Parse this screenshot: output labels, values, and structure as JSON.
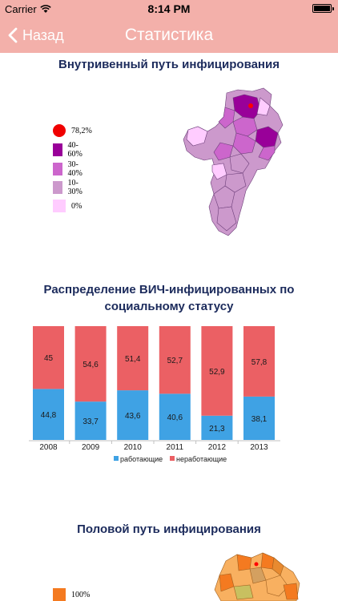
{
  "status_bar": {
    "carrier": "Carrier",
    "time": "8:14 PM"
  },
  "nav": {
    "back_label": "Назад",
    "title": "Статистика"
  },
  "section1": {
    "title": "Внутривенный путь инфицирования",
    "legend": [
      {
        "label": "78,2%",
        "color": "#f00000",
        "shape": "circle"
      },
      {
        "label": "40-60%",
        "color": "#990099",
        "shape": "square"
      },
      {
        "label": "30-40%",
        "color": "#cc66cc",
        "shape": "square"
      },
      {
        "label": "10-30%",
        "color": "#cc99cc",
        "shape": "square"
      },
      {
        "label": "0%",
        "color": "#ffccff",
        "shape": "square"
      }
    ]
  },
  "section2": {
    "title_line1": "Распределение ВИЧ-инфицированных по",
    "title_line2": "социальному статусу"
  },
  "chart_data": {
    "type": "bar",
    "stacked": true,
    "categories": [
      "2008",
      "2009",
      "2010",
      "2011",
      "2012",
      "2013"
    ],
    "series": [
      {
        "name": "работающие",
        "color": "#3fa2e4",
        "values": [
          44.8,
          33.7,
          43.6,
          40.6,
          21.3,
          38.1
        ],
        "labels": [
          "44,8",
          "33,7",
          "43,6",
          "40,6",
          "21,3",
          "38,1"
        ]
      },
      {
        "name": "неработающие",
        "color": "#eb6064",
        "values": [
          45,
          54.6,
          51.4,
          52.7,
          52.9,
          57.8
        ],
        "labels": [
          "45",
          "54,6",
          "51,4",
          "52,7",
          "52,9",
          "57,8"
        ]
      }
    ],
    "ylim": [
      0,
      100
    ],
    "legend_position": "bottom"
  },
  "section3": {
    "title": "Половой путь инфицирования",
    "legend": [
      {
        "label": "100%",
        "color": "#f47a20",
        "shape": "square"
      }
    ]
  }
}
